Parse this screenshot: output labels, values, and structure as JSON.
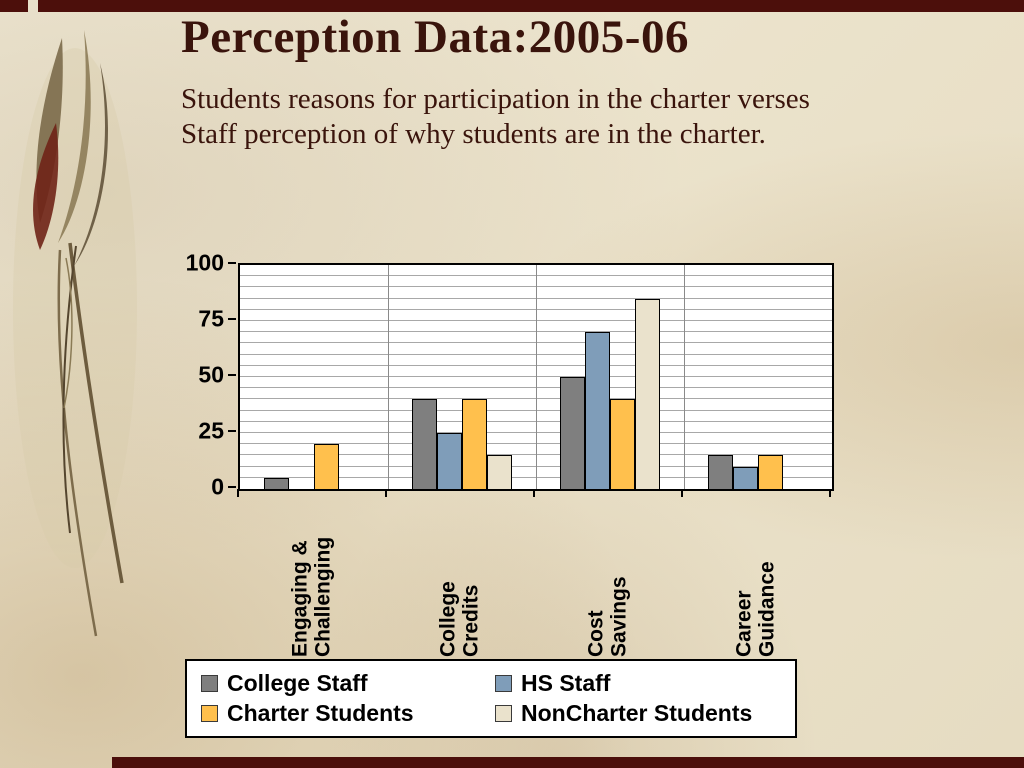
{
  "slide": {
    "title": "Perception Data:2005-06",
    "subtitle": "Students reasons for participation in the charter verses Staff perception of why students are in the charter."
  },
  "chart_data": {
    "type": "bar",
    "title": "",
    "categories": [
      "Engaging &\nChallenging",
      "College\nCredits",
      "Cost\nSavings",
      "Career\nGuidance"
    ],
    "series": [
      {
        "name": "College Staff",
        "color": "#7f7f7f",
        "values": [
          5,
          40,
          50,
          15
        ]
      },
      {
        "name": "HS Staff",
        "color": "#7f9db9",
        "values": [
          0,
          25,
          70,
          10
        ]
      },
      {
        "name": "Charter Students",
        "color": "#ffc04d",
        "values": [
          20,
          40,
          40,
          15
        ]
      },
      {
        "name": "NonCharter Students",
        "color": "#eae2cc",
        "values": [
          0,
          15,
          85,
          0
        ]
      }
    ],
    "xlabel": "",
    "ylabel": "",
    "ylim": [
      0,
      100
    ],
    "yticks": [
      0,
      25,
      50,
      75,
      100
    ],
    "minor_grid_step": 5,
    "grid": true,
    "legend_position": "bottom"
  },
  "theme": {
    "accent_maroon": "#4c0f0b",
    "background_parchment": "#eae1c9",
    "title_color": "#3a140c",
    "plot_background": "#ffffff"
  }
}
